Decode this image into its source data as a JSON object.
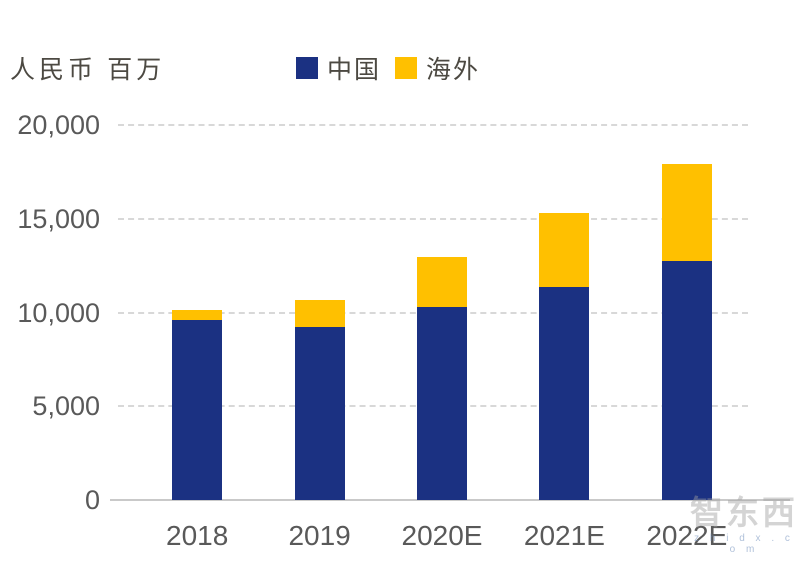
{
  "chart_data": {
    "type": "bar",
    "stacked": true,
    "title": "人民币 百万",
    "categories": [
      "2018",
      "2019",
      "2020E",
      "2021E",
      "2022E"
    ],
    "series": [
      {
        "name": "中国",
        "color": "#1b3182",
        "values": [
          9600,
          9250,
          10300,
          11350,
          12750
        ]
      },
      {
        "name": "海外",
        "color": "#ffc000",
        "values": [
          550,
          1400,
          2650,
          3950,
          5150
        ]
      }
    ],
    "ylim": [
      0,
      20000
    ],
    "ytick_step": 5000,
    "ytick_labels": [
      "0",
      "5,000",
      "10,000",
      "15,000",
      "20,000"
    ],
    "grid": "horizontal-dashed",
    "legend_position": "top-center",
    "axis_label_color": "#595959",
    "gridline_color": "#d8d8d8"
  },
  "watermark": {
    "text": "智东西",
    "subtext": "z h i d x . c o m"
  }
}
